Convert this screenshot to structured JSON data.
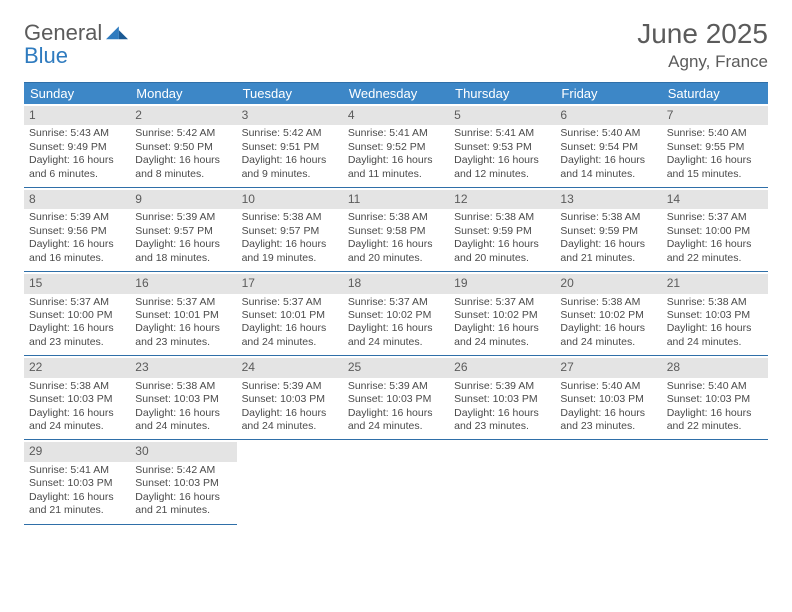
{
  "brand": {
    "word1": "General",
    "word2": "Blue"
  },
  "title": {
    "month": "June 2025",
    "location": "Agny, France"
  },
  "colors": {
    "header_bg": "#3d87c7",
    "rule": "#2f6fa8",
    "dayhead_bg": "#e4e4e4",
    "brand_blue": "#2f7bbf",
    "text": "#5b5b5b"
  },
  "dow": [
    "Sunday",
    "Monday",
    "Tuesday",
    "Wednesday",
    "Thursday",
    "Friday",
    "Saturday"
  ],
  "weeks": [
    [
      {
        "n": "1",
        "sr": "5:43 AM",
        "ss": "9:49 PM",
        "dl": "16 hours and 6 minutes."
      },
      {
        "n": "2",
        "sr": "5:42 AM",
        "ss": "9:50 PM",
        "dl": "16 hours and 8 minutes."
      },
      {
        "n": "3",
        "sr": "5:42 AM",
        "ss": "9:51 PM",
        "dl": "16 hours and 9 minutes."
      },
      {
        "n": "4",
        "sr": "5:41 AM",
        "ss": "9:52 PM",
        "dl": "16 hours and 11 minutes."
      },
      {
        "n": "5",
        "sr": "5:41 AM",
        "ss": "9:53 PM",
        "dl": "16 hours and 12 minutes."
      },
      {
        "n": "6",
        "sr": "5:40 AM",
        "ss": "9:54 PM",
        "dl": "16 hours and 14 minutes."
      },
      {
        "n": "7",
        "sr": "5:40 AM",
        "ss": "9:55 PM",
        "dl": "16 hours and 15 minutes."
      }
    ],
    [
      {
        "n": "8",
        "sr": "5:39 AM",
        "ss": "9:56 PM",
        "dl": "16 hours and 16 minutes."
      },
      {
        "n": "9",
        "sr": "5:39 AM",
        "ss": "9:57 PM",
        "dl": "16 hours and 18 minutes."
      },
      {
        "n": "10",
        "sr": "5:38 AM",
        "ss": "9:57 PM",
        "dl": "16 hours and 19 minutes."
      },
      {
        "n": "11",
        "sr": "5:38 AM",
        "ss": "9:58 PM",
        "dl": "16 hours and 20 minutes."
      },
      {
        "n": "12",
        "sr": "5:38 AM",
        "ss": "9:59 PM",
        "dl": "16 hours and 20 minutes."
      },
      {
        "n": "13",
        "sr": "5:38 AM",
        "ss": "9:59 PM",
        "dl": "16 hours and 21 minutes."
      },
      {
        "n": "14",
        "sr": "5:37 AM",
        "ss": "10:00 PM",
        "dl": "16 hours and 22 minutes."
      }
    ],
    [
      {
        "n": "15",
        "sr": "5:37 AM",
        "ss": "10:00 PM",
        "dl": "16 hours and 23 minutes."
      },
      {
        "n": "16",
        "sr": "5:37 AM",
        "ss": "10:01 PM",
        "dl": "16 hours and 23 minutes."
      },
      {
        "n": "17",
        "sr": "5:37 AM",
        "ss": "10:01 PM",
        "dl": "16 hours and 24 minutes."
      },
      {
        "n": "18",
        "sr": "5:37 AM",
        "ss": "10:02 PM",
        "dl": "16 hours and 24 minutes."
      },
      {
        "n": "19",
        "sr": "5:37 AM",
        "ss": "10:02 PM",
        "dl": "16 hours and 24 minutes."
      },
      {
        "n": "20",
        "sr": "5:38 AM",
        "ss": "10:02 PM",
        "dl": "16 hours and 24 minutes."
      },
      {
        "n": "21",
        "sr": "5:38 AM",
        "ss": "10:03 PM",
        "dl": "16 hours and 24 minutes."
      }
    ],
    [
      {
        "n": "22",
        "sr": "5:38 AM",
        "ss": "10:03 PM",
        "dl": "16 hours and 24 minutes."
      },
      {
        "n": "23",
        "sr": "5:38 AM",
        "ss": "10:03 PM",
        "dl": "16 hours and 24 minutes."
      },
      {
        "n": "24",
        "sr": "5:39 AM",
        "ss": "10:03 PM",
        "dl": "16 hours and 24 minutes."
      },
      {
        "n": "25",
        "sr": "5:39 AM",
        "ss": "10:03 PM",
        "dl": "16 hours and 24 minutes."
      },
      {
        "n": "26",
        "sr": "5:39 AM",
        "ss": "10:03 PM",
        "dl": "16 hours and 23 minutes."
      },
      {
        "n": "27",
        "sr": "5:40 AM",
        "ss": "10:03 PM",
        "dl": "16 hours and 23 minutes."
      },
      {
        "n": "28",
        "sr": "5:40 AM",
        "ss": "10:03 PM",
        "dl": "16 hours and 22 minutes."
      }
    ],
    [
      {
        "n": "29",
        "sr": "5:41 AM",
        "ss": "10:03 PM",
        "dl": "16 hours and 21 minutes."
      },
      {
        "n": "30",
        "sr": "5:42 AM",
        "ss": "10:03 PM",
        "dl": "16 hours and 21 minutes."
      },
      null,
      null,
      null,
      null,
      null
    ]
  ],
  "labels": {
    "sunrise": "Sunrise: ",
    "sunset": "Sunset: ",
    "daylight": "Daylight: "
  }
}
